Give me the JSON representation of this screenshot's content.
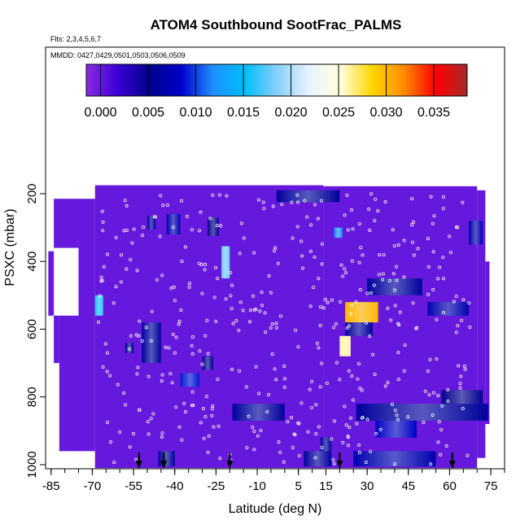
{
  "chart_data": {
    "type": "heatmap",
    "title": "ATOM4 Southbound SootFrac_PALMS",
    "flights_label": "Flts: 2,3,4,5,6,7",
    "dates_label": "MMDD: 0427,0429,0501,0503,0506,0509",
    "xlabel": "Latitude (deg N)",
    "ylabel": "PSXC (mbar)",
    "xlim": [
      -87,
      80
    ],
    "ylim": [
      1020,
      140
    ],
    "x_ticks": [
      -85,
      -70,
      -55,
      -40,
      -25,
      -10,
      5,
      15,
      30,
      45,
      60,
      75
    ],
    "y_ticks": [
      200,
      400,
      600,
      800,
      1000
    ],
    "colorbar": {
      "range": [
        -0.0015,
        0.0385
      ],
      "ticks": [
        "0.000",
        "0.005",
        "0.010",
        "0.015",
        "0.020",
        "0.025",
        "0.030",
        "0.035"
      ],
      "colors": [
        "#8a2be2",
        "#3b00d4",
        "#00008b",
        "#0000cd",
        "#1e90ff",
        "#00bfff",
        "#87cefa",
        "#e6f3ff",
        "#ffffe0",
        "#ffd700",
        "#ff8c00",
        "#ff0000",
        "#a52a2a"
      ]
    },
    "background_value": 0.0,
    "coverage": [
      {
        "lat0": -84,
        "lat1": -75,
        "p_top": 215,
        "p_bot": 360
      },
      {
        "lat0": -75,
        "lat1": -69,
        "p_top": 215,
        "p_bot": 960
      },
      {
        "lat0": -69,
        "lat1": 14,
        "p_top": 175,
        "p_bot": 1010
      },
      {
        "lat0": 14,
        "lat1": 70,
        "p_top": 178,
        "p_bot": 1010
      },
      {
        "lat0": -86,
        "lat1": -84,
        "p_top": 370,
        "p_bot": 560
      },
      {
        "lat0": -84,
        "lat1": -82,
        "p_top": 560,
        "p_bot": 700
      },
      {
        "lat0": -82,
        "lat1": -75,
        "p_top": 560,
        "p_bot": 960
      },
      {
        "lat0": 70,
        "lat1": 73,
        "p_top": 190,
        "p_bot": 980
      },
      {
        "lat0": 73,
        "lat1": 74.5,
        "p_top": 400,
        "p_bot": 880
      }
    ],
    "features": [
      {
        "lat0": -50,
        "lat1": -47,
        "p_top": 265,
        "p_bot": 305,
        "value": 0.006
      },
      {
        "lat0": -43,
        "lat1": -38,
        "p_top": 260,
        "p_bot": 320,
        "value": 0.007
      },
      {
        "lat0": -28,
        "lat1": -24,
        "p_top": 270,
        "p_bot": 325,
        "value": 0.005
      },
      {
        "lat0": -23,
        "lat1": -20,
        "p_top": 355,
        "p_bot": 450,
        "value": 0.018
      },
      {
        "lat0": -69,
        "lat1": -66,
        "p_top": 500,
        "p_bot": 560,
        "value": 0.016
      },
      {
        "lat0": -58,
        "lat1": -55,
        "p_top": 640,
        "p_bot": 670,
        "value": 0.005
      },
      {
        "lat0": -52,
        "lat1": -45,
        "p_top": 580,
        "p_bot": 700,
        "value": 0.006
      },
      {
        "lat0": -30,
        "lat1": -26,
        "p_top": 680,
        "p_bot": 720,
        "value": 0.005
      },
      {
        "lat0": -38,
        "lat1": -31,
        "p_top": 730,
        "p_bot": 770,
        "value": 0.009
      },
      {
        "lat0": -3,
        "lat1": 20,
        "p_top": 190,
        "p_bot": 225,
        "value": 0.006
      },
      {
        "lat0": 18,
        "lat1": 21,
        "p_top": 300,
        "p_bot": 330,
        "value": 0.012
      },
      {
        "lat0": 30,
        "lat1": 50,
        "p_top": 450,
        "p_bot": 500,
        "value": 0.006
      },
      {
        "lat0": 22,
        "lat1": 34,
        "p_top": 520,
        "p_bot": 580,
        "value": 0.03
      },
      {
        "lat0": 22,
        "lat1": 32,
        "p_top": 580,
        "p_bot": 620,
        "value": 0.006
      },
      {
        "lat0": 20,
        "lat1": 24,
        "p_top": 620,
        "p_bot": 680,
        "value": 0.026
      },
      {
        "lat0": 52,
        "lat1": 67,
        "p_top": 520,
        "p_bot": 560,
        "value": 0.007
      },
      {
        "lat0": 67,
        "lat1": 72,
        "p_top": 280,
        "p_bot": 350,
        "value": 0.007
      },
      {
        "lat0": -19,
        "lat1": 0,
        "p_top": 820,
        "p_bot": 870,
        "value": 0.006
      },
      {
        "lat0": 26,
        "lat1": 74,
        "p_top": 820,
        "p_bot": 870,
        "value": 0.006
      },
      {
        "lat0": 57,
        "lat1": 72,
        "p_top": 780,
        "p_bot": 820,
        "value": 0.005
      },
      {
        "lat0": 33,
        "lat1": 48,
        "p_top": 870,
        "p_bot": 920,
        "value": 0.008
      },
      {
        "lat0": 13,
        "lat1": 17,
        "p_top": 920,
        "p_bot": 960,
        "value": 0.006
      },
      {
        "lat0": -46,
        "lat1": -40,
        "p_top": 960,
        "p_bot": 1005,
        "value": 0.006
      },
      {
        "lat0": 7,
        "lat1": 17,
        "p_top": 960,
        "p_bot": 1005,
        "value": 0.006
      },
      {
        "lat0": 25,
        "lat1": 55,
        "p_top": 960,
        "p_bot": 1005,
        "value": 0.007
      }
    ],
    "arrows_lat": [
      -53,
      -44,
      -20,
      20,
      61
    ]
  }
}
